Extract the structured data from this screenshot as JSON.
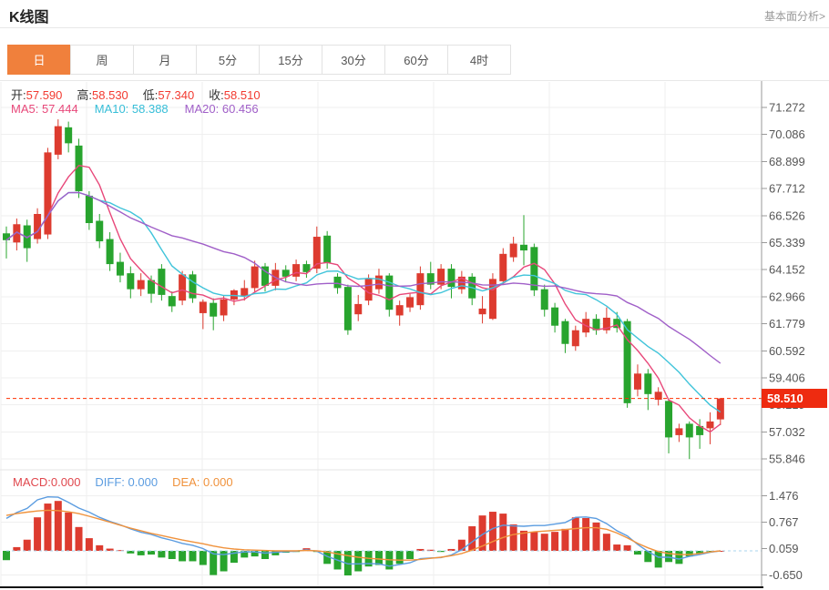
{
  "header": {
    "title": "K线图",
    "link": "基本面分析>"
  },
  "tabs": {
    "items": [
      "日",
      "周",
      "月",
      "5分",
      "15分",
      "30分",
      "60分",
      "4时"
    ],
    "active_index": 0
  },
  "info_bar": {
    "open_label": "开:",
    "open": "57.590",
    "high_label": "高:",
    "high": "58.530",
    "low_label": "低:",
    "low": "57.340",
    "close_label": "收:",
    "close": "58.510"
  },
  "ma_bar": {
    "ma5": "MA5: 57.444",
    "ma10": "MA10: 58.388",
    "ma20": "MA20: 60.456"
  },
  "macd_bar": {
    "macd": "MACD:0.000",
    "diff": "DIFF: 0.000",
    "dea": "DEA: 0.000"
  },
  "price_tag": {
    "value": "58.510"
  },
  "colors": {
    "up": "#dd3b2f",
    "down": "#28a42e",
    "ma5": "#e8487a",
    "ma10": "#40c4da",
    "ma20": "#a05fc8",
    "diff_line": "#5b9ce0",
    "dea_line": "#f0923c",
    "price_line": "#ff3000",
    "tag_bg": "#ee2b10",
    "zero_dash": "#a9d6ec",
    "grid": "#efefef",
    "axis": "#999999",
    "tick_text": "#555555",
    "bottom_line": "#111111",
    "active_tab": "#f0803c"
  },
  "chart_data": {
    "type": "candlestick",
    "main": {
      "title": "K线图 daily candlesticks",
      "y_ticks": [
        71.272,
        70.086,
        68.899,
        67.712,
        66.526,
        65.339,
        64.152,
        62.966,
        61.779,
        60.592,
        59.406,
        58.219,
        57.032,
        55.846
      ],
      "last_price": 58.51,
      "indicators": {
        "ma_periods": [
          5,
          10,
          20
        ],
        "macd_params": [
          12,
          26,
          9
        ]
      },
      "candles_format": [
        "open",
        "high",
        "low",
        "close"
      ],
      "candles": [
        [
          65.75,
          66.05,
          64.65,
          65.45
        ],
        [
          65.35,
          66.4,
          65.0,
          66.15
        ],
        [
          66.1,
          66.35,
          64.5,
          65.1
        ],
        [
          65.5,
          66.85,
          65.3,
          66.6
        ],
        [
          65.7,
          69.5,
          65.5,
          69.3
        ],
        [
          69.2,
          70.75,
          69.0,
          70.45
        ],
        [
          70.4,
          70.65,
          69.3,
          69.7
        ],
        [
          69.6,
          69.9,
          67.3,
          67.6
        ],
        [
          67.4,
          67.6,
          65.9,
          66.2
        ],
        [
          66.3,
          66.6,
          65.1,
          65.4
        ],
        [
          65.5,
          65.8,
          64.1,
          64.4
        ],
        [
          64.5,
          64.9,
          63.6,
          63.9
        ],
        [
          64.0,
          64.3,
          62.9,
          63.3
        ],
        [
          63.3,
          64.0,
          63.0,
          63.7
        ],
        [
          63.7,
          63.9,
          62.7,
          63.1
        ],
        [
          64.2,
          64.4,
          62.8,
          63.05
        ],
        [
          63.0,
          63.2,
          62.3,
          62.55
        ],
        [
          62.8,
          64.1,
          62.6,
          63.95
        ],
        [
          63.95,
          64.1,
          62.7,
          62.9
        ],
        [
          62.25,
          62.85,
          61.55,
          62.75
        ],
        [
          62.7,
          62.9,
          61.5,
          62.1
        ],
        [
          62.15,
          63.0,
          61.9,
          62.85
        ],
        [
          62.85,
          63.3,
          62.6,
          63.25
        ],
        [
          63.0,
          63.7,
          62.8,
          63.35
        ],
        [
          63.35,
          64.55,
          63.15,
          64.3
        ],
        [
          64.3,
          64.45,
          63.2,
          63.45
        ],
        [
          63.45,
          64.45,
          63.25,
          64.15
        ],
        [
          64.15,
          64.35,
          63.6,
          63.85
        ],
        [
          63.85,
          64.6,
          63.65,
          64.4
        ],
        [
          64.4,
          64.55,
          63.8,
          64.05
        ],
        [
          64.2,
          66.05,
          64.0,
          65.6
        ],
        [
          65.65,
          65.85,
          64.2,
          64.45
        ],
        [
          63.85,
          64.0,
          63.1,
          63.35
        ],
        [
          63.4,
          63.5,
          61.3,
          61.5
        ],
        [
          62.2,
          63.05,
          61.9,
          62.65
        ],
        [
          62.8,
          63.95,
          62.6,
          63.75
        ],
        [
          63.3,
          64.2,
          63.1,
          63.9
        ],
        [
          63.9,
          64.0,
          62.1,
          62.4
        ],
        [
          62.15,
          62.8,
          61.7,
          62.6
        ],
        [
          62.5,
          63.1,
          62.3,
          62.95
        ],
        [
          62.6,
          64.3,
          62.4,
          64.0
        ],
        [
          64.0,
          64.5,
          63.3,
          63.5
        ],
        [
          63.5,
          64.4,
          63.3,
          64.2
        ],
        [
          64.2,
          64.4,
          62.9,
          63.4
        ],
        [
          63.3,
          64.1,
          63.1,
          63.85
        ],
        [
          63.85,
          64.0,
          62.6,
          62.9
        ],
        [
          62.2,
          63.0,
          61.8,
          62.45
        ],
        [
          62.0,
          64.0,
          61.95,
          63.75
        ],
        [
          63.65,
          65.1,
          63.5,
          64.85
        ],
        [
          64.7,
          65.6,
          64.5,
          65.3
        ],
        [
          65.25,
          66.55,
          64.35,
          65.0
        ],
        [
          65.15,
          65.3,
          63.0,
          63.25
        ],
        [
          63.3,
          63.5,
          62.1,
          62.4
        ],
        [
          62.5,
          62.7,
          61.4,
          61.7
        ],
        [
          61.9,
          62.0,
          60.5,
          60.9
        ],
        [
          60.8,
          61.7,
          60.6,
          61.5
        ],
        [
          61.4,
          62.3,
          61.2,
          62.0
        ],
        [
          62.0,
          62.2,
          61.3,
          61.5
        ],
        [
          61.5,
          62.5,
          61.35,
          62.05
        ],
        [
          62.0,
          62.3,
          61.4,
          61.6
        ],
        [
          61.9,
          62.0,
          58.1,
          58.3
        ],
        [
          58.9,
          60.0,
          58.6,
          59.6
        ],
        [
          59.6,
          59.8,
          58.0,
          58.7
        ],
        [
          58.45,
          59.0,
          58.2,
          58.8
        ],
        [
          58.4,
          58.5,
          56.1,
          56.8
        ],
        [
          56.9,
          57.4,
          56.6,
          57.2
        ],
        [
          57.4,
          57.5,
          55.85,
          56.8
        ],
        [
          57.3,
          57.6,
          56.3,
          56.9
        ],
        [
          57.2,
          57.9,
          56.5,
          57.5
        ],
        [
          57.59,
          58.53,
          57.34,
          58.51
        ]
      ]
    },
    "macd": {
      "y_ticks": [
        1.476,
        0.767,
        0.059,
        -0.65
      ],
      "hist": [
        -0.25,
        0.1,
        0.3,
        0.9,
        1.27,
        1.34,
        1.03,
        0.64,
        0.34,
        0.15,
        0.06,
        0.02,
        -0.07,
        -0.12,
        -0.1,
        -0.18,
        -0.22,
        -0.28,
        -0.28,
        -0.38,
        -0.65,
        -0.55,
        -0.32,
        -0.18,
        -0.15,
        -0.22,
        -0.12,
        -0.05,
        -0.03,
        0.07,
        -0.03,
        -0.35,
        -0.5,
        -0.66,
        -0.55,
        -0.42,
        -0.38,
        -0.5,
        -0.35,
        -0.22,
        0.05,
        0.03,
        -0.03,
        0.05,
        0.3,
        0.66,
        0.95,
        1.05,
        1.0,
        0.71,
        0.54,
        0.51,
        0.46,
        0.51,
        0.59,
        0.9,
        0.88,
        0.76,
        0.46,
        0.17,
        0.15,
        -0.1,
        -0.3,
        -0.45,
        -0.3,
        -0.35,
        -0.15,
        -0.08,
        -0.03,
        0.0
      ],
      "diff": [
        0.87,
        1.03,
        1.14,
        1.37,
        1.45,
        1.44,
        1.3,
        1.15,
        1.04,
        0.9,
        0.79,
        0.7,
        0.59,
        0.5,
        0.44,
        0.35,
        0.28,
        0.2,
        0.15,
        0.06,
        -0.08,
        -0.1,
        -0.06,
        -0.03,
        -0.03,
        -0.06,
        -0.04,
        -0.02,
        -0.01,
        0.03,
        -0.01,
        -0.15,
        -0.25,
        -0.35,
        -0.35,
        -0.34,
        -0.35,
        -0.41,
        -0.37,
        -0.32,
        -0.21,
        -0.19,
        -0.18,
        -0.11,
        0.03,
        0.24,
        0.44,
        0.6,
        0.69,
        0.67,
        0.66,
        0.68,
        0.68,
        0.72,
        0.76,
        0.9,
        0.91,
        0.87,
        0.73,
        0.54,
        0.4,
        0.17,
        -0.02,
        -0.17,
        -0.17,
        -0.22,
        -0.15,
        -0.1,
        -0.04,
        0.0
      ],
      "dea": [
        0.95,
        1.0,
        1.04,
        1.07,
        1.09,
        1.08,
        1.05,
        1.0,
        0.93,
        0.85,
        0.77,
        0.69,
        0.61,
        0.54,
        0.47,
        0.41,
        0.35,
        0.29,
        0.24,
        0.19,
        0.13,
        0.08,
        0.05,
        0.03,
        0.02,
        0.01,
        0.0,
        0.0,
        0.0,
        0.01,
        0.0,
        -0.03,
        -0.08,
        -0.13,
        -0.17,
        -0.2,
        -0.22,
        -0.24,
        -0.25,
        -0.25,
        -0.23,
        -0.2,
        -0.17,
        -0.13,
        -0.07,
        0.02,
        0.13,
        0.25,
        0.36,
        0.44,
        0.48,
        0.51,
        0.53,
        0.55,
        0.57,
        0.6,
        0.62,
        0.62,
        0.58,
        0.48,
        0.35,
        0.2,
        0.08,
        -0.02,
        -0.07,
        -0.1,
        -0.1,
        -0.07,
        -0.03,
        0.0
      ]
    }
  }
}
